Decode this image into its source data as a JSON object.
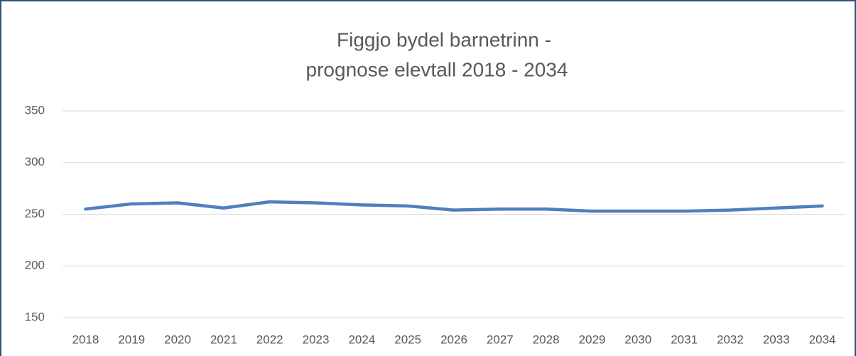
{
  "chart_data": {
    "type": "line",
    "title": [
      "Figgjo bydel barnetrinn -",
      "prognose elevtall  2018 - 2034"
    ],
    "categories": [
      "2018",
      "2019",
      "2020",
      "2021",
      "2022",
      "2023",
      "2024",
      "2025",
      "2026",
      "2027",
      "2028",
      "2029",
      "2030",
      "2031",
      "2032",
      "2033",
      "2034"
    ],
    "series": [
      {
        "color": "#4f7fbf",
        "values": [
          255,
          260,
          261,
          256,
          262,
          261,
          259,
          258,
          254,
          255,
          255,
          253,
          253,
          253,
          254,
          256,
          258
        ]
      }
    ],
    "ylim": [
      150,
      350
    ],
    "yticks": [
      150,
      200,
      250,
      300,
      350
    ],
    "grid": true
  }
}
